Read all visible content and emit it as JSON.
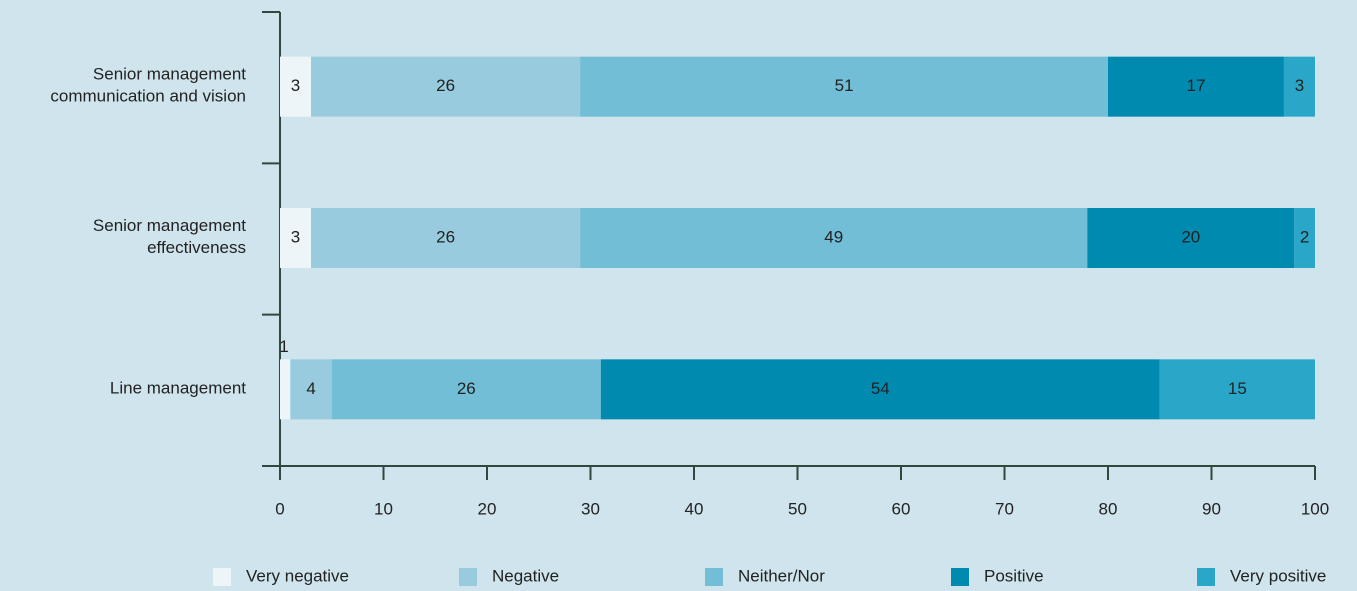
{
  "chart_data": {
    "type": "stacked_barh",
    "categories": [
      "Senior management communication and vision",
      "Senior management effectiveness",
      "Line management"
    ],
    "series": [
      {
        "name": "Very negative",
        "color": "#eef5f8",
        "values": [
          3,
          3,
          1
        ]
      },
      {
        "name": "Negative",
        "color": "#98cbdd",
        "values": [
          26,
          26,
          4
        ]
      },
      {
        "name": "Neither/Nor",
        "color": "#72bed6",
        "values": [
          51,
          49,
          26
        ]
      },
      {
        "name": "Positive",
        "color": "#008ab0",
        "values": [
          17,
          20,
          54
        ]
      },
      {
        "name": "Very positive",
        "color": "#2aa7c8",
        "values": [
          3,
          2,
          15
        ]
      }
    ],
    "xlim": [
      0,
      100
    ],
    "xticks": [
      0,
      10,
      20,
      30,
      40,
      50,
      60,
      70,
      80,
      90,
      100
    ],
    "legend": "bottom"
  }
}
